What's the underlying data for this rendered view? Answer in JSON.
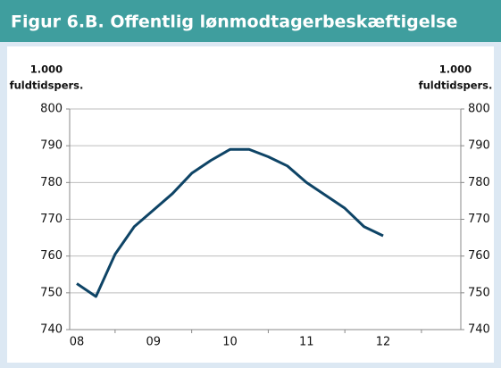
{
  "chart_data": {
    "type": "line",
    "title": "Figur 6.B. Offentlig lønmodtagerbeskæftigelse",
    "ylabel": [
      "1.000",
      "fuldtidspers."
    ],
    "y2label": [
      "1.000",
      "fuldtidspers."
    ],
    "categories": [
      "08",
      null,
      null,
      null,
      "09",
      null,
      null,
      null,
      "10",
      null,
      null,
      null,
      "11",
      null,
      null,
      null,
      "12"
    ],
    "series": [
      {
        "name": "Offentlig lønmodtagerbeskæftigelse",
        "color": "#0e4466",
        "values": [
          752.5,
          749,
          760.5,
          768,
          772.5,
          777,
          782.5,
          786,
          789,
          789,
          787,
          784.5,
          780,
          776.5,
          773,
          768,
          765.5
        ]
      }
    ],
    "ylim": [
      740,
      800
    ],
    "yticks": [
      740,
      750,
      760,
      770,
      780,
      790,
      800
    ],
    "y2lim": [
      740,
      800
    ],
    "y2ticks": [
      740,
      750,
      760,
      770,
      780,
      790,
      800
    ],
    "grid": true
  }
}
